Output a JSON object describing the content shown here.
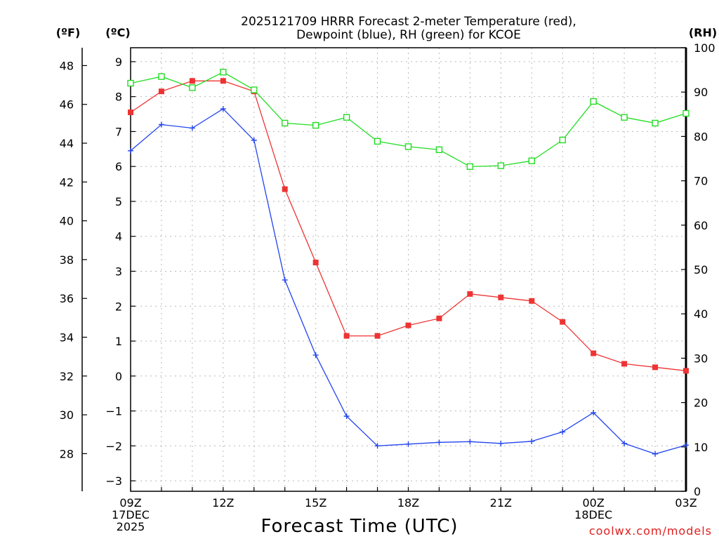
{
  "chart_data": {
    "type": "line",
    "title_lines": [
      "2025121709 HRRR Forecast 2-meter Temperature (red),",
      "Dewpoint (blue), RH (green) for KCOE"
    ],
    "xlabel": "Forecast Time (UTC)",
    "credit": "coolwx.com/models",
    "units": {
      "fahrenheit": "(ºF)",
      "celsius": "(ºC)",
      "rh": "(RH)"
    },
    "x_hours": [
      0,
      1,
      2,
      3,
      4,
      5,
      6,
      7,
      8,
      9,
      10,
      11,
      12,
      13,
      14,
      15,
      16,
      17,
      18
    ],
    "x_ticks": [
      {
        "hour": 0,
        "lines": [
          "09Z",
          "17DEC",
          "2025"
        ]
      },
      {
        "hour": 3,
        "lines": [
          "12Z"
        ]
      },
      {
        "hour": 6,
        "lines": [
          "15Z"
        ]
      },
      {
        "hour": 9,
        "lines": [
          "18Z"
        ]
      },
      {
        "hour": 12,
        "lines": [
          "21Z"
        ]
      },
      {
        "hour": 15,
        "lines": [
          "00Z",
          "18DEC"
        ]
      },
      {
        "hour": 18,
        "lines": [
          "03Z"
        ]
      }
    ],
    "celsius_axis": {
      "range": [
        -3.3,
        9.4
      ],
      "ticks": [
        -3,
        -2,
        -1,
        0,
        1,
        2,
        3,
        4,
        5,
        6,
        7,
        8,
        9
      ]
    },
    "fahrenheit_axis": {
      "range": [
        26.06,
        48.92
      ],
      "ticks": [
        28,
        30,
        32,
        34,
        36,
        38,
        40,
        42,
        44,
        46,
        48
      ]
    },
    "rh_axis": {
      "range": [
        0,
        100
      ],
      "ticks": [
        0,
        10,
        20,
        30,
        40,
        50,
        60,
        70,
        80,
        90,
        100
      ]
    },
    "series": [
      {
        "name": "Temperature",
        "axis": "celsius",
        "color": "#ee3333",
        "marker": "filled-square",
        "values": [
          7.55,
          8.15,
          8.45,
          8.45,
          8.15,
          5.35,
          3.25,
          1.15,
          1.15,
          1.45,
          1.65,
          2.35,
          2.25,
          2.15,
          1.55,
          0.65,
          0.35,
          0.25,
          0.15
        ]
      },
      {
        "name": "Dewpoint",
        "axis": "celsius",
        "color": "#2244ee",
        "marker": "plus",
        "values": [
          6.45,
          7.2,
          7.1,
          7.65,
          6.75,
          2.75,
          0.6,
          -1.15,
          -2.0,
          -1.95,
          -1.9,
          -1.88,
          -1.93,
          -1.87,
          -1.6,
          -1.05,
          -1.93,
          -2.23,
          -1.98
        ]
      },
      {
        "name": "RH",
        "axis": "rh",
        "color": "#22dd22",
        "marker": "open-square",
        "values": [
          92.0,
          93.5,
          91.0,
          94.5,
          90.5,
          83.0,
          82.5,
          84.3,
          78.9,
          77.7,
          77.0,
          73.2,
          73.4,
          74.5,
          79.2,
          87.9,
          84.3,
          83.0,
          85.2
        ]
      }
    ]
  }
}
